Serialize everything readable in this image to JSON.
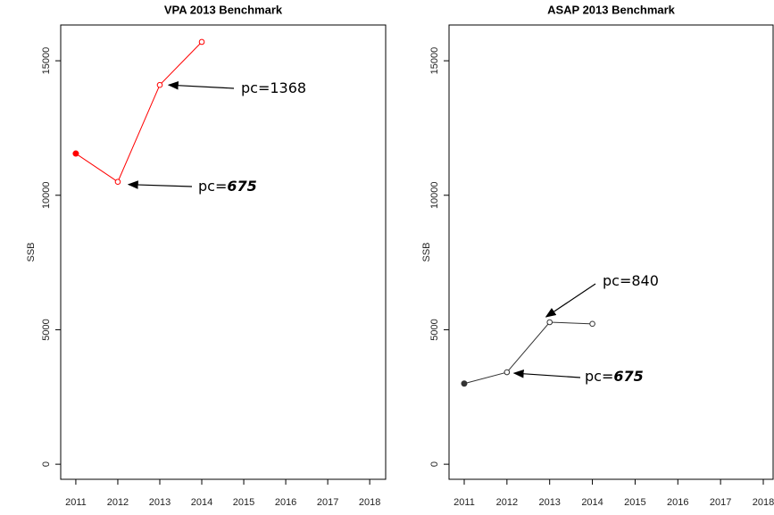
{
  "chart_data": [
    {
      "type": "line",
      "title": "VPA 2013 Benchmark",
      "ylabel": "SSB",
      "x": [
        2011,
        2012,
        2013,
        2014
      ],
      "series": [
        {
          "color": "#ff0000",
          "values": [
            11550,
            10500,
            14100,
            15700
          ]
        }
      ],
      "xlim": [
        2010.64,
        2018.38
      ],
      "xticks": [
        2011,
        2012,
        2013,
        2014,
        2015,
        2016,
        2017,
        2018
      ],
      "ylim": [
        -560,
        16330
      ],
      "yticks": [
        0,
        5000,
        10000,
        15000
      ],
      "annotations": [
        {
          "text": "pc=1368"
        },
        {
          "text": "pc=",
          "emphasis": "675"
        }
      ]
    },
    {
      "type": "line",
      "title": "ASAP 2013 Benchmark",
      "ylabel": "SSB",
      "x": [
        2011,
        2012,
        2013,
        2014
      ],
      "series": [
        {
          "color": "#333333",
          "values": [
            3000,
            3420,
            5280,
            5220
          ]
        }
      ],
      "xlim": [
        2010.645,
        2018.23
      ],
      "xticks": [
        2011,
        2012,
        2013,
        2014,
        2015,
        2016,
        2017,
        2018
      ],
      "ylim": [
        -560,
        16330
      ],
      "yticks": [
        0,
        5000,
        10000,
        15000
      ],
      "annotations": [
        {
          "text": "pc=840"
        },
        {
          "text": "pc=",
          "emphasis": "675"
        }
      ]
    }
  ]
}
